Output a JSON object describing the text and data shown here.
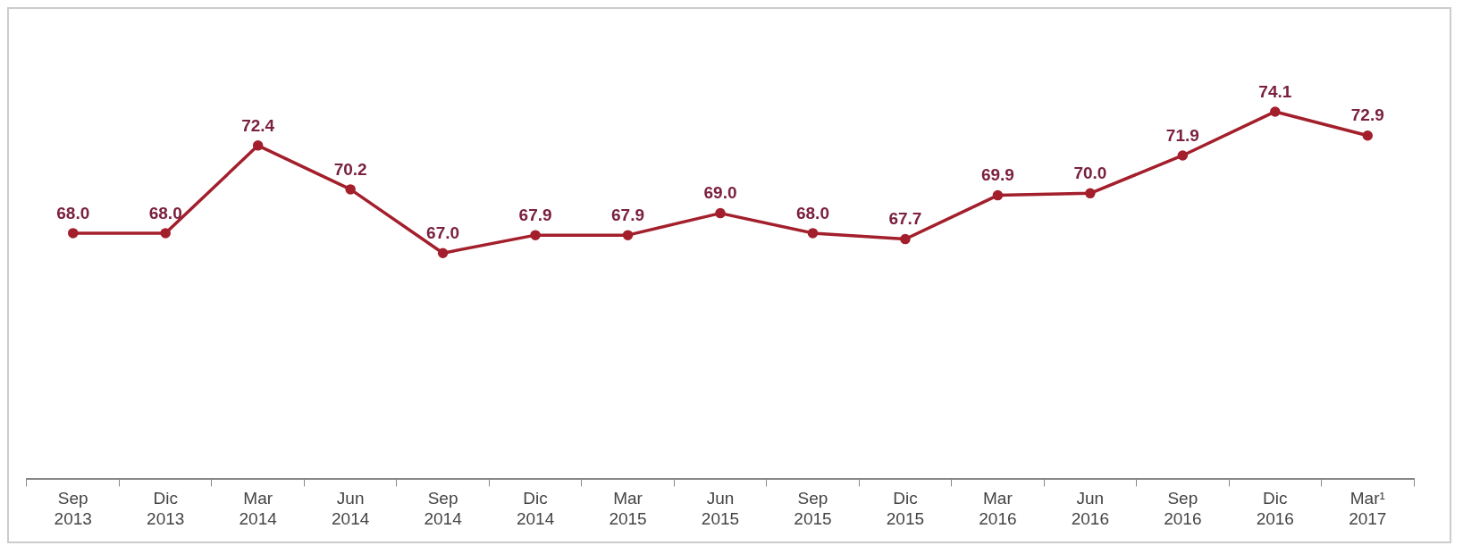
{
  "chart_data": {
    "type": "line",
    "categories": [
      "Sep 2013",
      "Dic 2013",
      "Mar 2014",
      "Jun 2014",
      "Sep 2014",
      "Dic 2014",
      "Mar 2015",
      "Jun 2015",
      "Sep 2015",
      "Dic 2015",
      "Mar 2016",
      "Jun 2016",
      "Sep 2016",
      "Dic 2016",
      "Mar¹ 2017"
    ],
    "series": [
      {
        "color": "#a31f2c",
        "values": [
          68.0,
          68.0,
          72.4,
          70.2,
          67.0,
          67.9,
          67.9,
          69.0,
          68.0,
          67.7,
          69.9,
          70.0,
          71.9,
          74.1,
          72.9
        ],
        "value_labels": [
          "68.0",
          "68.0",
          "72.4",
          "70.2",
          "67.0",
          "67.9",
          "67.9",
          "69.0",
          "68.0",
          "67.7",
          "69.9",
          "70.0",
          "71.9",
          "74.1",
          "72.9"
        ]
      }
    ],
    "marker": "circle",
    "line_style": "solid",
    "grid": false,
    "legend": false,
    "tick_labels": "x"
  }
}
